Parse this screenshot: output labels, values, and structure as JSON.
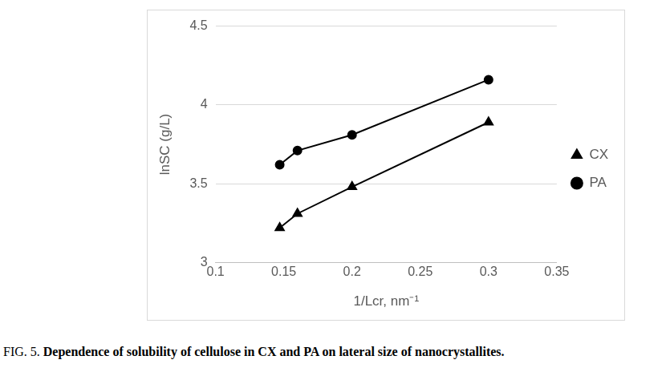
{
  "chart_data": {
    "type": "scatter",
    "x_label": "1/Lcr, nm⁻¹",
    "y_label": "lnSC (g/L)",
    "caption_lead": "FIG. 5.",
    "caption": "Dependence of solubility of cellulose in CX and PA on lateral size of nanocrystallites.",
    "xlim": [
      0.1,
      0.35
    ],
    "xticks": [
      0.1,
      0.15,
      0.2,
      0.25,
      0.3,
      0.35
    ],
    "ylim": [
      3,
      4.5
    ],
    "yticks": [
      3,
      3.5,
      4,
      4.5
    ],
    "grid": "y",
    "legend": "right",
    "series": [
      {
        "name": "CX",
        "color": "#000000",
        "marker": "triangle",
        "line_style": "solid",
        "x": [
          0.147,
          0.16,
          0.2,
          0.3
        ],
        "values": [
          3.22,
          3.31,
          3.48,
          3.89
        ]
      },
      {
        "name": "PA",
        "color": "#000000",
        "marker": "circle",
        "line_style": "solid",
        "x": [
          0.147,
          0.16,
          0.2,
          0.3
        ],
        "values": [
          3.62,
          3.71,
          3.81,
          4.16
        ]
      }
    ]
  }
}
